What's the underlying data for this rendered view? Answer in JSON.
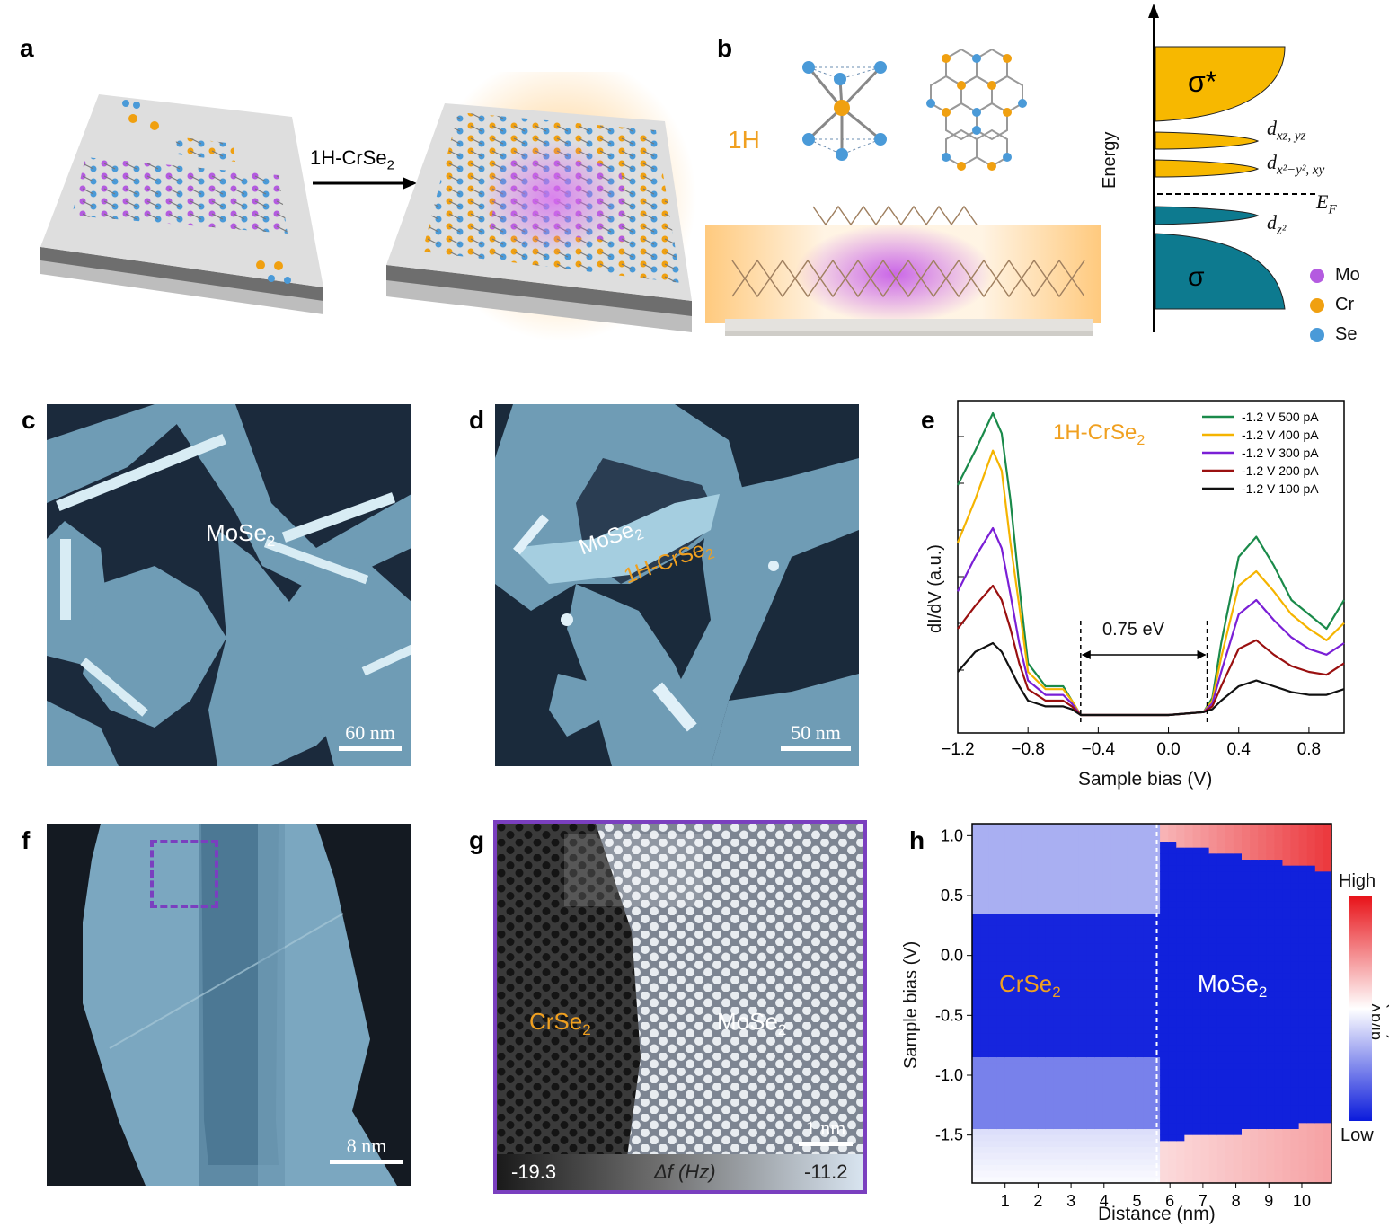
{
  "panels": {
    "a": {
      "label": "a",
      "arrow_label": "1H-CrSe",
      "arrow_label_sub": "2"
    },
    "b": {
      "label": "b",
      "phase_label": "1H",
      "energy_axis_label": "Energy",
      "levels": {
        "sigma_star": "σ*",
        "sigma": "σ",
        "d1": "d",
        "d1_sub": "xz, yz",
        "d2": "d",
        "d2_sub": "x²−y², xy",
        "d3": "d",
        "d3_sub": "z²",
        "ef": "E",
        "ef_sub": "F"
      },
      "legend": [
        {
          "label": "Mo",
          "color": "#b45be0"
        },
        {
          "label": "Cr",
          "color": "#f0a010"
        },
        {
          "label": "Se",
          "color": "#4a9ad8"
        }
      ]
    },
    "c": {
      "label": "c",
      "material": "MoSe",
      "material_sub": "2",
      "scale_bar": "60 nm"
    },
    "d": {
      "label": "d",
      "material1": "MoSe",
      "material1_sub": "2",
      "material2": "1H-CrSe",
      "material2_sub": "2",
      "scale_bar": "50 nm"
    },
    "e": {
      "label": "e",
      "inset_label": "1H-CrSe",
      "inset_label_sub": "2",
      "gap_label": "0.75 eV",
      "xlabel": "Sample bias (V)",
      "ylabel": "dI/dV (a.u.)",
      "xticks": [
        "−1.2",
        "−0.8",
        "−0.4",
        "0.0",
        "0.4",
        "0.8"
      ]
    },
    "f": {
      "label": "f",
      "scale_bar": "8 nm"
    },
    "g": {
      "label": "g",
      "left_label": "CrSe",
      "left_label_sub": "2",
      "right_label": "MoSe",
      "right_label_sub": "2",
      "scale_bar": "1 nm",
      "colorbar_min": "-19.3",
      "colorbar_title": "Δf (Hz)",
      "colorbar_max": "-11.2"
    },
    "h": {
      "label": "h",
      "left_label": "CrSe",
      "left_label_sub": "2",
      "right_label": "MoSe",
      "right_label_sub": "2",
      "xlabel": "Distance (nm)",
      "ylabel": "Sample bias (V)",
      "colorbar_high": "High",
      "colorbar_low": "Low",
      "colorbar_title": "dI/dV (a.u.)",
      "xticks": [
        "1",
        "2",
        "3",
        "4",
        "5",
        "6",
        "7",
        "8",
        "9",
        "10"
      ],
      "yticks": [
        "1.0",
        "0.5",
        "0.0",
        "-0.5",
        "-1.0",
        "-1.5"
      ]
    }
  },
  "chart_data": [
    {
      "type": "line",
      "panel": "e",
      "xlabel": "Sample bias (V)",
      "ylabel": "dI/dV (a.u.)",
      "xlim": [
        -1.2,
        1.0
      ],
      "legend_position": "top-right",
      "gap_annotation": {
        "label": "0.75 eV",
        "x_start": -0.5,
        "x_end": 0.22
      },
      "x": [
        -1.2,
        -1.1,
        -1.0,
        -0.95,
        -0.9,
        -0.85,
        -0.8,
        -0.7,
        -0.6,
        -0.55,
        -0.5,
        -0.4,
        -0.2,
        0.0,
        0.2,
        0.25,
        0.3,
        0.4,
        0.5,
        0.6,
        0.7,
        0.8,
        0.9,
        1.0
      ],
      "series": [
        {
          "name": "-1.2 V 500 pA",
          "color": "#1a8a4a",
          "values": [
            0.8,
            0.92,
            1.05,
            0.98,
            0.75,
            0.45,
            0.18,
            0.1,
            0.1,
            0.05,
            0.0,
            0.0,
            0.0,
            0.0,
            0.01,
            0.06,
            0.25,
            0.55,
            0.62,
            0.52,
            0.4,
            0.35,
            0.3,
            0.4
          ]
        },
        {
          "name": "-1.2 V 400 pA",
          "color": "#f5b400",
          "values": [
            0.6,
            0.75,
            0.92,
            0.85,
            0.6,
            0.38,
            0.15,
            0.09,
            0.09,
            0.05,
            0.0,
            0.0,
            0.0,
            0.0,
            0.01,
            0.05,
            0.2,
            0.45,
            0.5,
            0.43,
            0.35,
            0.3,
            0.26,
            0.32
          ]
        },
        {
          "name": "-1.2 V 300 pA",
          "color": "#7a1fd6",
          "values": [
            0.43,
            0.55,
            0.65,
            0.58,
            0.42,
            0.25,
            0.12,
            0.07,
            0.07,
            0.04,
            0.0,
            0.0,
            0.0,
            0.0,
            0.01,
            0.04,
            0.15,
            0.35,
            0.4,
            0.33,
            0.27,
            0.23,
            0.21,
            0.25
          ]
        },
        {
          "name": "-1.2 V 200 pA",
          "color": "#9a1010",
          "values": [
            0.3,
            0.38,
            0.45,
            0.4,
            0.3,
            0.18,
            0.09,
            0.05,
            0.05,
            0.03,
            0.0,
            0.0,
            0.0,
            0.0,
            0.01,
            0.03,
            0.1,
            0.23,
            0.26,
            0.21,
            0.17,
            0.15,
            0.14,
            0.18
          ]
        },
        {
          "name": "-1.2 V 100 pA",
          "color": "#111111",
          "values": [
            0.15,
            0.22,
            0.25,
            0.22,
            0.16,
            0.1,
            0.05,
            0.03,
            0.03,
            0.02,
            0.0,
            0.0,
            0.0,
            0.0,
            0.01,
            0.02,
            0.05,
            0.1,
            0.12,
            0.1,
            0.08,
            0.07,
            0.07,
            0.09
          ]
        }
      ]
    },
    {
      "type": "heatmap",
      "panel": "h",
      "xlabel": "Distance (nm)",
      "ylabel": "Sample bias (V)",
      "xlim": [
        0,
        10.9
      ],
      "ylim": [
        -1.9,
        1.1
      ],
      "boundary_x_nm": 5.6,
      "colorbar": {
        "low": "Low",
        "high": "High",
        "title": "dI/dV (a.u.)",
        "colors": [
          "#0a1adb",
          "#ffffff",
          "#e8141a"
        ]
      }
    }
  ]
}
